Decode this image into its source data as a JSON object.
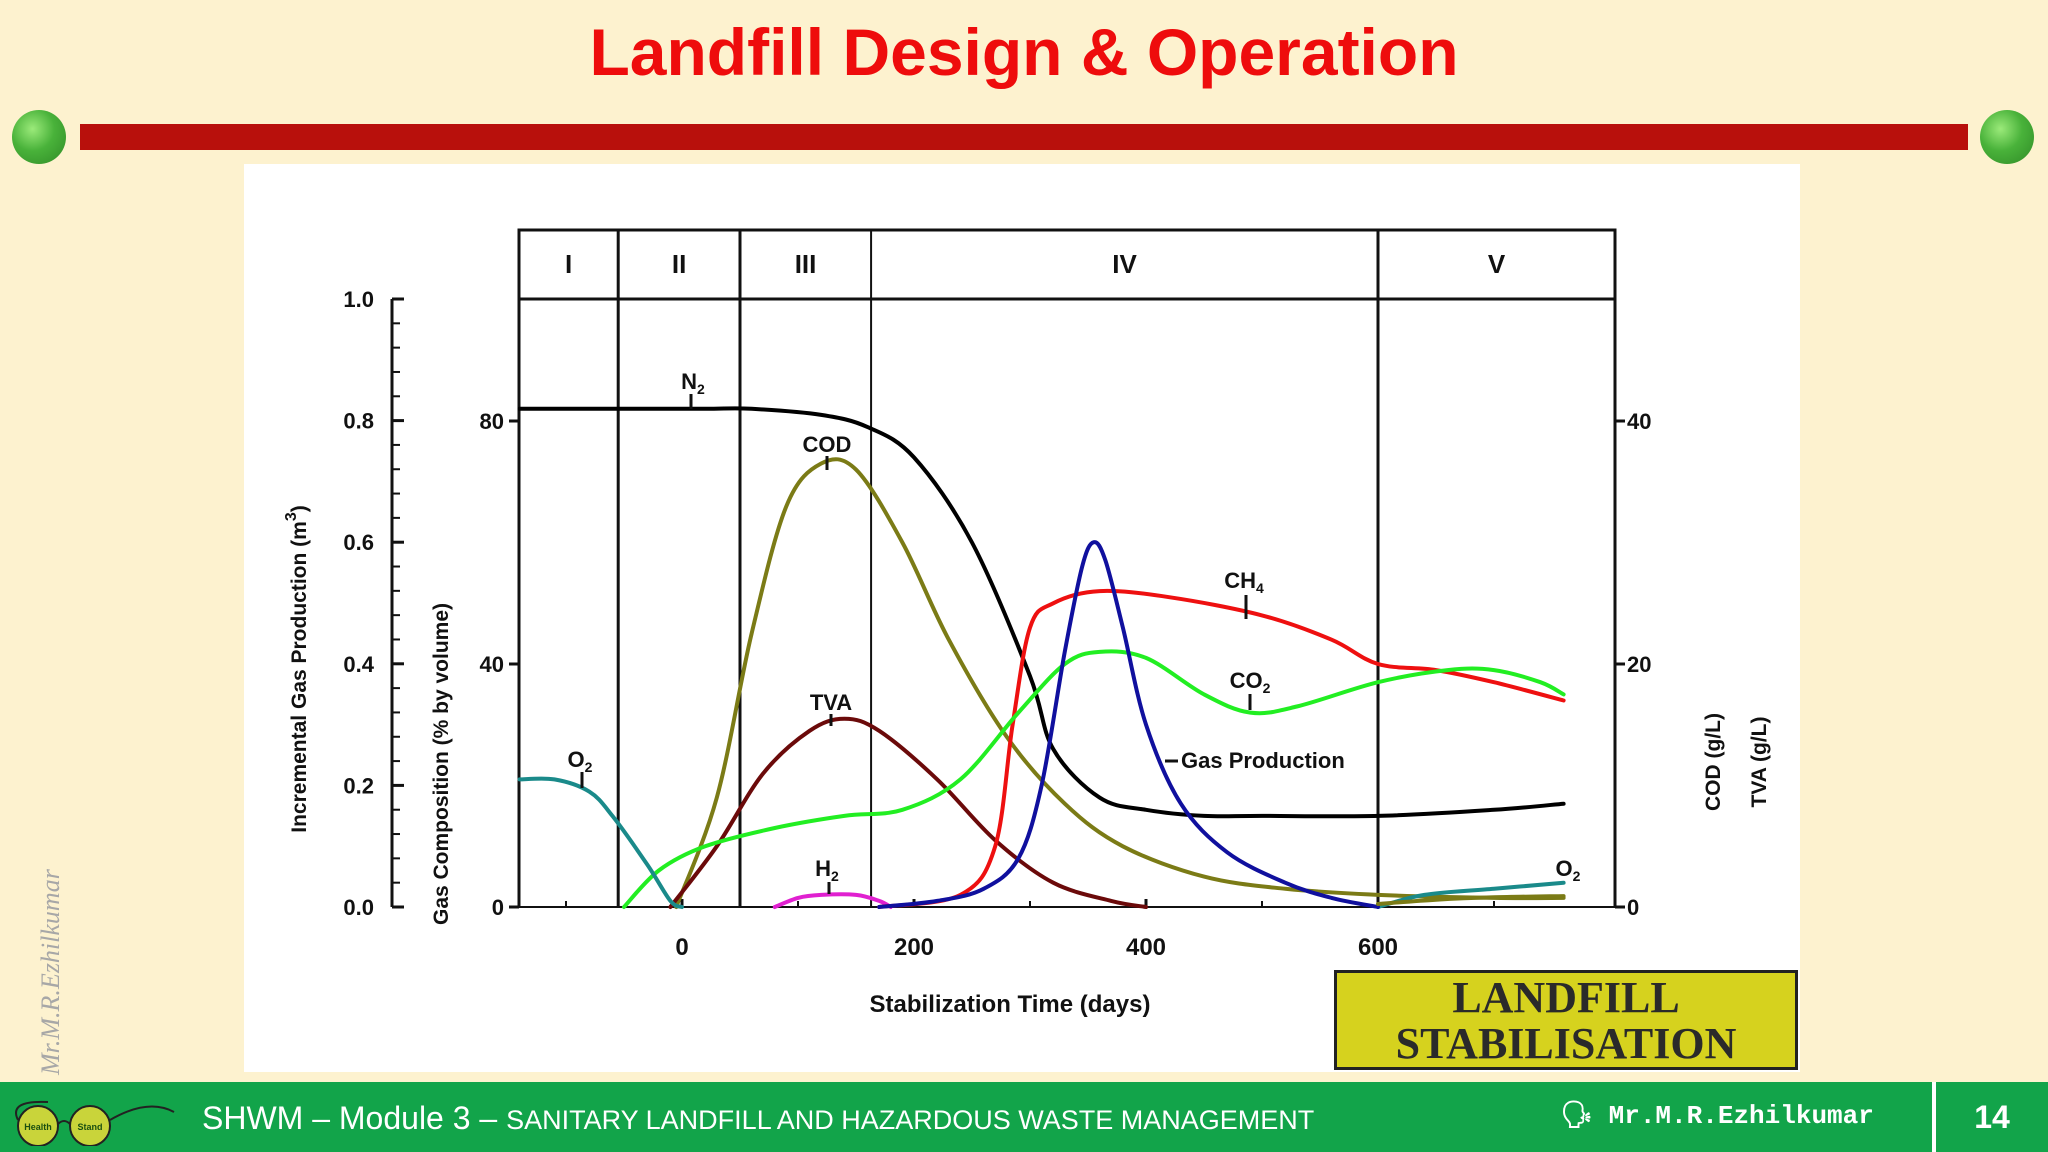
{
  "slide": {
    "title": "Landfill Design & Operation",
    "watermark": "Mr.M.R.Ezhilkumar",
    "colors": {
      "background": "#fdf2cf",
      "title": "#ee0c0c",
      "title_bar": "#b8100c",
      "footer": "#12a44a",
      "badge": "#d6d21e"
    }
  },
  "badge": {
    "line1": "LANDFILL",
    "line2": "STABILISATION"
  },
  "footer": {
    "logo_text_left": "Health",
    "logo_text_right": "Stand",
    "module": "SHWM – Module 3 – ",
    "subtitle": "SANITARY LANDFILL AND HAZARDOUS WASTE MANAGEMENT",
    "author_icon": "speaking-head-icon",
    "author": "Mr.M.R.Ezhilkumar",
    "page": "14"
  },
  "chart_data": {
    "type": "line",
    "phases": [
      "I",
      "II",
      "III",
      "IV",
      "V"
    ],
    "phase_boundaries_days": [
      -200,
      -55,
      50,
      163,
      600,
      800
    ],
    "xlabel": "Stabilization Time (days)",
    "xticks": [
      0,
      200,
      400,
      600
    ],
    "xlim": [
      -140,
      800
    ],
    "y_axes": {
      "gas_production": {
        "label": "Incremental Gas Production (m",
        "label_sup": "3",
        "label_end": ")",
        "ticks": [
          "1.0",
          "0.8",
          "0.6",
          "0.4",
          "0.2",
          "0.0"
        ],
        "ylim": [
          0,
          1
        ]
      },
      "gas_composition": {
        "label": "Gas Composition (% by volume)",
        "ticks": [
          "80",
          "40",
          "0"
        ],
        "ylim": [
          0,
          100
        ]
      },
      "cod_tva": {
        "label1": "COD (g/L)",
        "label2": "TVA (g/L)",
        "ticks": [
          "40",
          "20",
          "0"
        ],
        "ylim": [
          0,
          50
        ]
      }
    },
    "series": [
      {
        "name": "N2",
        "label_main": "N",
        "label_sub": "2",
        "color": "#000000",
        "points": [
          [
            -140,
            82
          ],
          [
            -50,
            82
          ],
          [
            20,
            82
          ],
          [
            60,
            82
          ],
          [
            120,
            81
          ],
          [
            160,
            79
          ],
          [
            200,
            74
          ],
          [
            250,
            60
          ],
          [
            300,
            38
          ],
          [
            320,
            26
          ],
          [
            360,
            18
          ],
          [
            400,
            16
          ],
          [
            450,
            15
          ],
          [
            500,
            15
          ],
          [
            600,
            15
          ],
          [
            700,
            16
          ],
          [
            760,
            17
          ]
        ]
      },
      {
        "name": "COD",
        "label_main": "COD",
        "label_sub": "",
        "color": "#7b7b16",
        "points": [
          [
            -5,
            0
          ],
          [
            30,
            18
          ],
          [
            60,
            45
          ],
          [
            90,
            66
          ],
          [
            120,
            73
          ],
          [
            150,
            72
          ],
          [
            190,
            60
          ],
          [
            230,
            44
          ],
          [
            280,
            28
          ],
          [
            330,
            17
          ],
          [
            380,
            10
          ],
          [
            450,
            5
          ],
          [
            520,
            3
          ],
          [
            600,
            2
          ],
          [
            700,
            1.5
          ],
          [
            760,
            1.5
          ]
        ]
      },
      {
        "name": "TVA",
        "label_main": "TVA",
        "label_sub": "",
        "color": "#6b0a0a",
        "points": [
          [
            -10,
            0
          ],
          [
            30,
            10
          ],
          [
            70,
            22
          ],
          [
            110,
            29
          ],
          [
            140,
            31
          ],
          [
            170,
            29
          ],
          [
            220,
            21
          ],
          [
            270,
            11
          ],
          [
            320,
            4
          ],
          [
            370,
            1
          ],
          [
            400,
            0
          ]
        ]
      },
      {
        "name": "H2",
        "label_main": "H",
        "label_sub": "2",
        "color": "#e020d0",
        "points": [
          [
            80,
            0
          ],
          [
            100,
            1.5
          ],
          [
            120,
            2
          ],
          [
            150,
            2
          ],
          [
            170,
            1
          ],
          [
            180,
            0
          ]
        ]
      },
      {
        "name": "CH4",
        "label_main": "CH",
        "label_sub": "4",
        "color": "#ee1010",
        "points": [
          [
            170,
            0
          ],
          [
            240,
            2
          ],
          [
            270,
            10
          ],
          [
            285,
            30
          ],
          [
            300,
            46
          ],
          [
            320,
            50
          ],
          [
            360,
            52
          ],
          [
            420,
            51
          ],
          [
            500,
            48
          ],
          [
            560,
            44
          ],
          [
            600,
            40
          ],
          [
            650,
            39
          ],
          [
            700,
            37
          ],
          [
            760,
            34
          ]
        ]
      },
      {
        "name": "CO2",
        "label_main": "CO",
        "label_sub": "2",
        "color": "#22ee22",
        "points": [
          [
            -50,
            0
          ],
          [
            -20,
            6
          ],
          [
            20,
            10
          ],
          [
            80,
            13
          ],
          [
            140,
            15
          ],
          [
            190,
            16
          ],
          [
            240,
            21
          ],
          [
            290,
            32
          ],
          [
            330,
            40
          ],
          [
            360,
            42
          ],
          [
            400,
            41
          ],
          [
            450,
            35
          ],
          [
            490,
            32
          ],
          [
            530,
            33
          ],
          [
            600,
            37
          ],
          [
            660,
            39
          ],
          [
            700,
            39
          ],
          [
            740,
            37
          ],
          [
            760,
            35
          ]
        ]
      },
      {
        "name": "O2",
        "label_main": "O",
        "label_sub": "2",
        "color": "#1a8a8a",
        "points": [
          [
            -140,
            21
          ],
          [
            -110,
            21
          ],
          [
            -80,
            19
          ],
          [
            -60,
            15
          ],
          [
            -30,
            7
          ],
          [
            -10,
            1
          ],
          [
            0,
            0
          ]
        ]
      },
      {
        "name": "O2 (late)",
        "label_main": "O",
        "label_sub": "2",
        "color": "#1a8a8a",
        "points": [
          [
            600,
            0
          ],
          [
            640,
            2
          ],
          [
            700,
            3
          ],
          [
            760,
            4
          ]
        ]
      },
      {
        "name": "Gas Production",
        "label_main": "Gas Production",
        "label_sub": "",
        "color": "#10109e",
        "axis": "gas_production",
        "points": [
          [
            170,
            0
          ],
          [
            220,
            0.01
          ],
          [
            260,
            0.03
          ],
          [
            290,
            0.08
          ],
          [
            310,
            0.2
          ],
          [
            330,
            0.42
          ],
          [
            345,
            0.56
          ],
          [
            355,
            0.6
          ],
          [
            365,
            0.57
          ],
          [
            380,
            0.46
          ],
          [
            400,
            0.3
          ],
          [
            430,
            0.17
          ],
          [
            470,
            0.09
          ],
          [
            520,
            0.04
          ],
          [
            560,
            0.015
          ],
          [
            600,
            0
          ]
        ]
      },
      {
        "name": "Leachate tail",
        "label_main": "",
        "label_sub": "",
        "color": "#7b7b16",
        "points": [
          [
            600,
            0.5
          ],
          [
            650,
            1.2
          ],
          [
            700,
            1.6
          ],
          [
            760,
            1.8
          ]
        ]
      }
    ]
  }
}
